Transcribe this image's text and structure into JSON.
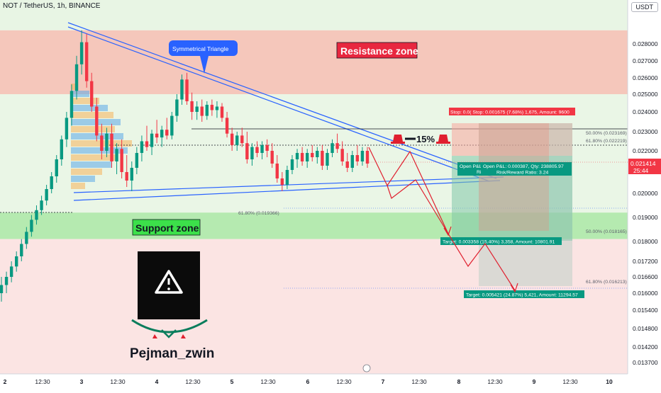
{
  "header": {
    "symbol": "NOT / TetherUS, 1h, BINANCE",
    "currency_button": "USDT"
  },
  "zones": {
    "resistance": "Resistance zone",
    "support": "Support zone",
    "pattern": "Symmetrical Triangle",
    "drop_label": "15%"
  },
  "fib_labels": [
    {
      "text": "50.00% (0.023169)",
      "price": 0.023169
    },
    {
      "text": "61.80% (0.022219)",
      "price": 0.022219
    },
    {
      "text": "61.80% (0.019366)",
      "price": 0.019366
    },
    {
      "text": "50.00% (0.018165)",
      "price": 0.018165
    },
    {
      "text": "61.80% (0.016213)",
      "price": 0.016213
    }
  ],
  "position_labels": {
    "stop": "Stop: 0.0( Stop: 0.001675 (7.68%) 1,675, Amount: 9600",
    "pnl_left": "Open P&L",
    "pnl_left2": "Ris",
    "pnl_right": "Open P&L: 0.000387, Qty: 238805.97",
    "rr": "Risk/Reward Ratio: 3.24",
    "target1": "Target: 0.003358 (15.40%) 3,358, Amount: 10801.91",
    "target2": "Target: 0.005421 (24.87%) 5,421, Amount: 11294.57"
  },
  "watermark": {
    "author": "Pejman_zwin",
    "icon": "warning-triangle-icon"
  },
  "current_price": {
    "value": "0.021414",
    "timer": "25:44",
    "color": "#f23645"
  },
  "colors": {
    "up": "#089981",
    "down": "#f23645",
    "trend": "#2962ff",
    "resistance_bg": "#f4c1b4",
    "support_bg": "#a8e6a2",
    "arrow": "#e0202f"
  },
  "chart_data": {
    "type": "candlestick",
    "title": "",
    "xlabel": "",
    "ylabel": "",
    "ylim": [
      0.01345,
      0.02951
    ],
    "y_ticks": [
      "0.028000",
      "0.027000",
      "0.026000",
      "0.025000",
      "0.024000",
      "0.023000",
      "0.022000",
      "0.021000",
      "0.020000",
      "0.019000",
      "0.018000",
      "0.017200",
      "0.016600",
      "0.016000",
      "0.015400",
      "0.014800",
      "0.014200",
      "0.013700"
    ],
    "x_ticks": [
      "2",
      "12:30",
      "3",
      "12:30",
      "4",
      "12:30",
      "5",
      "12:30",
      "6",
      "12:30",
      "7",
      "12:30",
      "8",
      "12:30",
      "9",
      "12:30",
      "10"
    ],
    "resistance_zone": [
      0.025,
      0.0288
    ],
    "support_zone": [
      0.0181,
      0.0192
    ],
    "candles_ohlc": [
      [
        0.016,
        0.0166,
        0.0157,
        0.0163
      ],
      [
        0.0163,
        0.0168,
        0.016,
        0.0166
      ],
      [
        0.0166,
        0.0172,
        0.0164,
        0.017
      ],
      [
        0.017,
        0.0176,
        0.0168,
        0.0174
      ],
      [
        0.0174,
        0.0181,
        0.0172,
        0.0179
      ],
      [
        0.0179,
        0.0186,
        0.0177,
        0.0184
      ],
      [
        0.0184,
        0.0191,
        0.0182,
        0.0189
      ],
      [
        0.0189,
        0.0195,
        0.0187,
        0.0193
      ],
      [
        0.0193,
        0.0199,
        0.0191,
        0.0197
      ],
      [
        0.0197,
        0.0204,
        0.0195,
        0.0202
      ],
      [
        0.0202,
        0.021,
        0.02,
        0.0208
      ],
      [
        0.0208,
        0.0218,
        0.0205,
        0.0216
      ],
      [
        0.0216,
        0.0228,
        0.0213,
        0.0226
      ],
      [
        0.0226,
        0.024,
        0.0222,
        0.0237
      ],
      [
        0.0237,
        0.0256,
        0.0233,
        0.0252
      ],
      [
        0.0252,
        0.0273,
        0.0247,
        0.0268
      ],
      [
        0.0268,
        0.0288,
        0.0262,
        0.0281
      ],
      [
        0.0281,
        0.0286,
        0.0254,
        0.0258
      ],
      [
        0.0258,
        0.0263,
        0.024,
        0.0243
      ],
      [
        0.0243,
        0.0248,
        0.0225,
        0.0228
      ],
      [
        0.0228,
        0.0234,
        0.0216,
        0.022
      ],
      [
        0.022,
        0.0232,
        0.0217,
        0.0229
      ],
      [
        0.0229,
        0.0234,
        0.0212,
        0.0215
      ],
      [
        0.0215,
        0.0224,
        0.0209,
        0.0221
      ],
      [
        0.0221,
        0.0226,
        0.0207,
        0.021
      ],
      [
        0.021,
        0.0218,
        0.0203,
        0.0206
      ],
      [
        0.0206,
        0.0215,
        0.0201,
        0.0212
      ],
      [
        0.0212,
        0.0222,
        0.0209,
        0.0219
      ],
      [
        0.0219,
        0.0228,
        0.0215,
        0.0225
      ],
      [
        0.0225,
        0.0233,
        0.022,
        0.0222
      ],
      [
        0.0222,
        0.0231,
        0.0218,
        0.0229
      ],
      [
        0.0229,
        0.0236,
        0.0224,
        0.0227
      ],
      [
        0.0227,
        0.0233,
        0.0222,
        0.0231
      ],
      [
        0.0231,
        0.0237,
        0.0226,
        0.0228
      ],
      [
        0.0228,
        0.024,
        0.0226,
        0.0238
      ],
      [
        0.0238,
        0.025,
        0.0235,
        0.0247
      ],
      [
        0.0247,
        0.0262,
        0.0244,
        0.0259
      ],
      [
        0.0259,
        0.0263,
        0.0244,
        0.0246
      ],
      [
        0.0246,
        0.0251,
        0.0236,
        0.024
      ],
      [
        0.024,
        0.0246,
        0.0236,
        0.0243
      ],
      [
        0.0243,
        0.0247,
        0.0235,
        0.0238
      ],
      [
        0.0238,
        0.0246,
        0.0236,
        0.0244
      ],
      [
        0.0244,
        0.0247,
        0.0238,
        0.0241
      ],
      [
        0.0241,
        0.0246,
        0.0237,
        0.0243
      ],
      [
        0.0243,
        0.0245,
        0.0235,
        0.0237
      ],
      [
        0.0237,
        0.024,
        0.0227,
        0.0229
      ],
      [
        0.0229,
        0.0232,
        0.022,
        0.0223
      ],
      [
        0.0223,
        0.023,
        0.022,
        0.0228
      ],
      [
        0.0228,
        0.0232,
        0.0222,
        0.0224
      ],
      [
        0.0224,
        0.023,
        0.0214,
        0.0216
      ],
      [
        0.0216,
        0.0224,
        0.0213,
        0.0222
      ],
      [
        0.0222,
        0.0225,
        0.0217,
        0.0219
      ],
      [
        0.0219,
        0.0225,
        0.0216,
        0.0223
      ],
      [
        0.0223,
        0.0226,
        0.0217,
        0.022
      ],
      [
        0.022,
        0.0224,
        0.0212,
        0.0214
      ],
      [
        0.0214,
        0.0218,
        0.0205,
        0.0207
      ],
      [
        0.0207,
        0.021,
        0.0201,
        0.0204
      ],
      [
        0.0204,
        0.0213,
        0.0202,
        0.0211
      ],
      [
        0.0211,
        0.0218,
        0.0209,
        0.0216
      ],
      [
        0.0216,
        0.0221,
        0.0212,
        0.0219
      ],
      [
        0.0219,
        0.0222,
        0.0213,
        0.0215
      ],
      [
        0.0215,
        0.0221,
        0.0212,
        0.0219
      ],
      [
        0.0219,
        0.0223,
        0.0215,
        0.0217
      ],
      [
        0.0217,
        0.0222,
        0.0214,
        0.022
      ],
      [
        0.022,
        0.0223,
        0.0211,
        0.0213
      ],
      [
        0.0213,
        0.0221,
        0.0211,
        0.0219
      ],
      [
        0.0219,
        0.0226,
        0.0217,
        0.0224
      ],
      [
        0.0224,
        0.0229,
        0.0219,
        0.0221
      ],
      [
        0.0221,
        0.0225,
        0.0213,
        0.0215
      ],
      [
        0.0215,
        0.0219,
        0.021,
        0.0212
      ],
      [
        0.0212,
        0.022,
        0.021,
        0.0218
      ],
      [
        0.0218,
        0.0223,
        0.0213,
        0.0215
      ],
      [
        0.0215,
        0.0222,
        0.0213,
        0.022
      ],
      [
        0.022,
        0.0222,
        0.0212,
        0.0214
      ]
    ]
  }
}
